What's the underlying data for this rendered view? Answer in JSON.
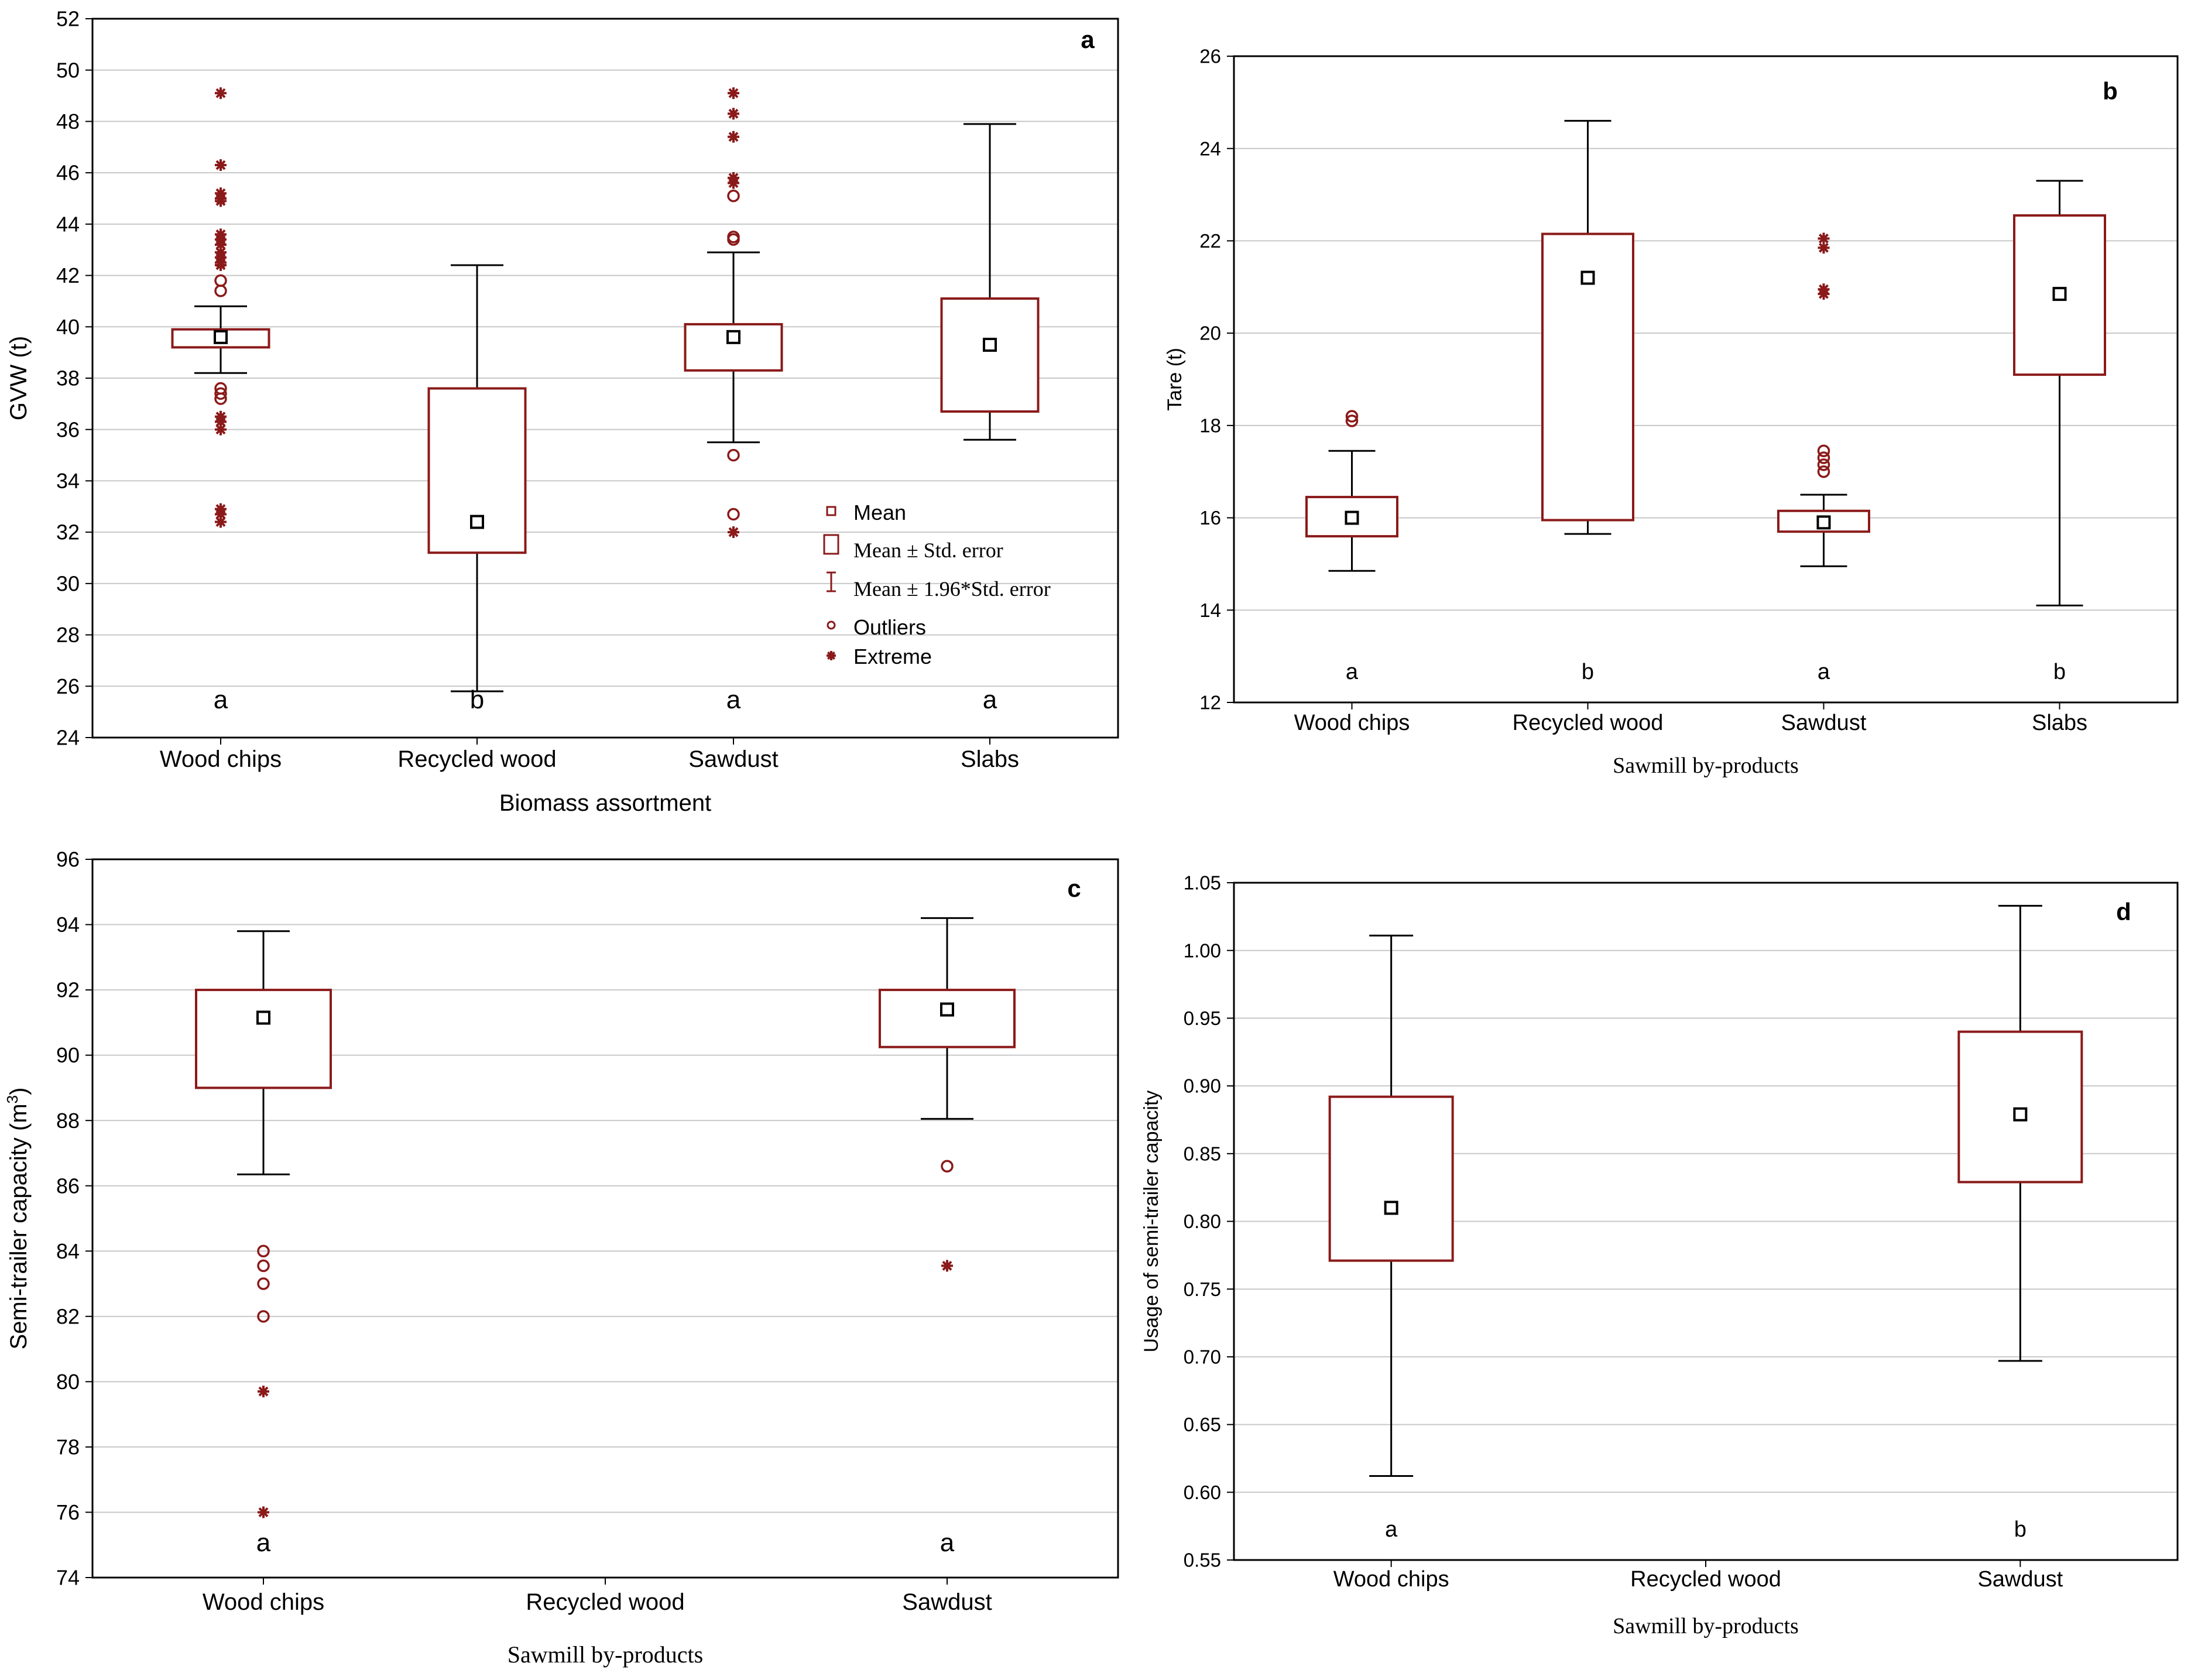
{
  "colors": {
    "box": "#8B1A1A",
    "whisker": "#000000",
    "grid": "#c8c8c8",
    "point": "#8B1A1A",
    "mean": "#000000"
  },
  "chart_data": [
    {
      "id": "a",
      "type": "boxplot",
      "panel_label": "a",
      "title": "",
      "xlabel": "Biomass assortment",
      "ylabel": "GVW (t)",
      "ylim": [
        24,
        52
      ],
      "yticks": [
        "24",
        "26",
        "28",
        "30",
        "32",
        "34",
        "36",
        "38",
        "40",
        "42",
        "44",
        "46",
        "48",
        "50",
        "52"
      ],
      "categories": [
        "Wood chips",
        "Recycled wood",
        "Sawdust",
        "Slabs"
      ],
      "series": [
        {
          "name": "Wood chips",
          "mean": 39.6,
          "se_low": 39.2,
          "se_high": 39.9,
          "ci_low": 38.2,
          "ci_high": 40.8,
          "outliers": [
            41.4,
            41.8,
            37.2,
            37.4,
            37.6
          ],
          "extremes": [
            49.1,
            46.3,
            45.2,
            45.0,
            44.9,
            43.6,
            43.4,
            43.2,
            42.9,
            42.7,
            42.5,
            42.4,
            36.5,
            36.3,
            36.0,
            32.9,
            32.7,
            32.4
          ],
          "letter": "a"
        },
        {
          "name": "Recycled wood",
          "mean": 32.4,
          "se_low": 31.2,
          "se_high": 37.6,
          "ci_low": 25.8,
          "ci_high": 42.4,
          "outliers": [],
          "extremes": [],
          "letter": "b"
        },
        {
          "name": "Sawdust",
          "mean": 39.6,
          "se_low": 38.3,
          "se_high": 40.1,
          "ci_low": 35.5,
          "ci_high": 42.9,
          "outliers": [
            45.1,
            43.5,
            43.4,
            35.0,
            32.7
          ],
          "extremes": [
            49.1,
            48.3,
            47.4,
            45.8,
            45.6,
            32.0
          ],
          "letter": "a"
        },
        {
          "name": "Slabs",
          "mean": 39.3,
          "se_low": 36.7,
          "se_high": 41.1,
          "ci_low": 35.6,
          "ci_high": 47.9,
          "outliers": [],
          "extremes": [],
          "letter": "a"
        }
      ],
      "legend": {
        "position": "bottom-right",
        "items": [
          "Mean",
          "Mean ± Std. error",
          "Mean ± 1.96*Std. error",
          "Outliers",
          "Extreme"
        ]
      }
    },
    {
      "id": "b",
      "type": "boxplot",
      "panel_label": "b",
      "title": "",
      "xlabel": "Sawmill by-products",
      "ylabel": "Tare (t)",
      "ylim": [
        12,
        26
      ],
      "yticks": [
        "12",
        "14",
        "16",
        "18",
        "20",
        "22",
        "24",
        "26"
      ],
      "categories": [
        "Wood chips",
        "Recycled wood",
        "Sawdust",
        "Slabs"
      ],
      "series": [
        {
          "name": "Wood chips",
          "mean": 16.0,
          "se_low": 15.6,
          "se_high": 16.45,
          "ci_low": 14.85,
          "ci_high": 17.45,
          "outliers": [
            18.2,
            18.1
          ],
          "extremes": [],
          "letter": "a"
        },
        {
          "name": "Recycled wood",
          "mean": 21.2,
          "se_low": 15.95,
          "se_high": 22.15,
          "ci_low": 15.65,
          "ci_high": 24.6,
          "outliers": [],
          "extremes": [],
          "letter": "b"
        },
        {
          "name": "Sawdust",
          "mean": 15.9,
          "se_low": 15.7,
          "se_high": 16.15,
          "ci_low": 14.95,
          "ci_high": 16.5,
          "outliers": [
            17.45,
            17.3,
            17.15,
            17.0
          ],
          "extremes": [
            22.05,
            21.85,
            20.95,
            20.85
          ],
          "letter": "a"
        },
        {
          "name": "Slabs",
          "mean": 20.85,
          "se_low": 19.1,
          "se_high": 22.55,
          "ci_low": 14.1,
          "ci_high": 23.3,
          "outliers": [],
          "extremes": [],
          "letter": "b"
        }
      ]
    },
    {
      "id": "c",
      "type": "boxplot",
      "panel_label": "c",
      "title": "",
      "xlabel": "Sawmill by-products",
      "ylabel": "Semi-trailer capacity (m",
      "ylabel_sup": "3",
      "ylabel_end": ")",
      "ylim": [
        74,
        96
      ],
      "yticks": [
        "74",
        "76",
        "78",
        "80",
        "82",
        "84",
        "86",
        "88",
        "90",
        "92",
        "94",
        "96"
      ],
      "categories": [
        "Wood chips",
        "Recycled wood",
        "Sawdust"
      ],
      "series": [
        {
          "name": "Wood chips",
          "mean": 91.15,
          "se_low": 89.0,
          "se_high": 92.0,
          "ci_low": 86.35,
          "ci_high": 93.8,
          "outliers": [
            84.0,
            83.55,
            83.0,
            82.0
          ],
          "extremes": [
            79.7,
            76.0
          ],
          "letter": "a"
        },
        {
          "name": "Recycled wood",
          "mean": null,
          "letter": ""
        },
        {
          "name": "Sawdust",
          "mean": 91.4,
          "se_low": 90.25,
          "se_high": 92.0,
          "ci_low": 88.05,
          "ci_high": 94.2,
          "outliers": [
            86.6
          ],
          "extremes": [
            83.55
          ],
          "letter": "a"
        }
      ]
    },
    {
      "id": "d",
      "type": "boxplot",
      "panel_label": "d",
      "title": "",
      "xlabel": "Sawmill by-products",
      "ylabel": "Usage of semi-trailer capacity",
      "ylim": [
        0.55,
        1.05
      ],
      "yticks": [
        "0.55",
        "0.60",
        "0.65",
        "0.70",
        "0.75",
        "0.80",
        "0.85",
        "0.90",
        "0.95",
        "1.00",
        "1.05"
      ],
      "categories": [
        "Wood chips",
        "Recycled wood",
        "Sawdust"
      ],
      "series": [
        {
          "name": "Wood chips",
          "mean": 0.81,
          "se_low": 0.771,
          "se_high": 0.892,
          "ci_low": 0.612,
          "ci_high": 1.011,
          "outliers": [],
          "extremes": [],
          "letter": "a"
        },
        {
          "name": "Recycled wood",
          "mean": null,
          "letter": ""
        },
        {
          "name": "Sawdust",
          "mean": 0.879,
          "se_low": 0.829,
          "se_high": 0.94,
          "ci_low": 0.697,
          "ci_high": 1.033,
          "outliers": [],
          "extremes": [],
          "letter": "b"
        }
      ]
    }
  ]
}
